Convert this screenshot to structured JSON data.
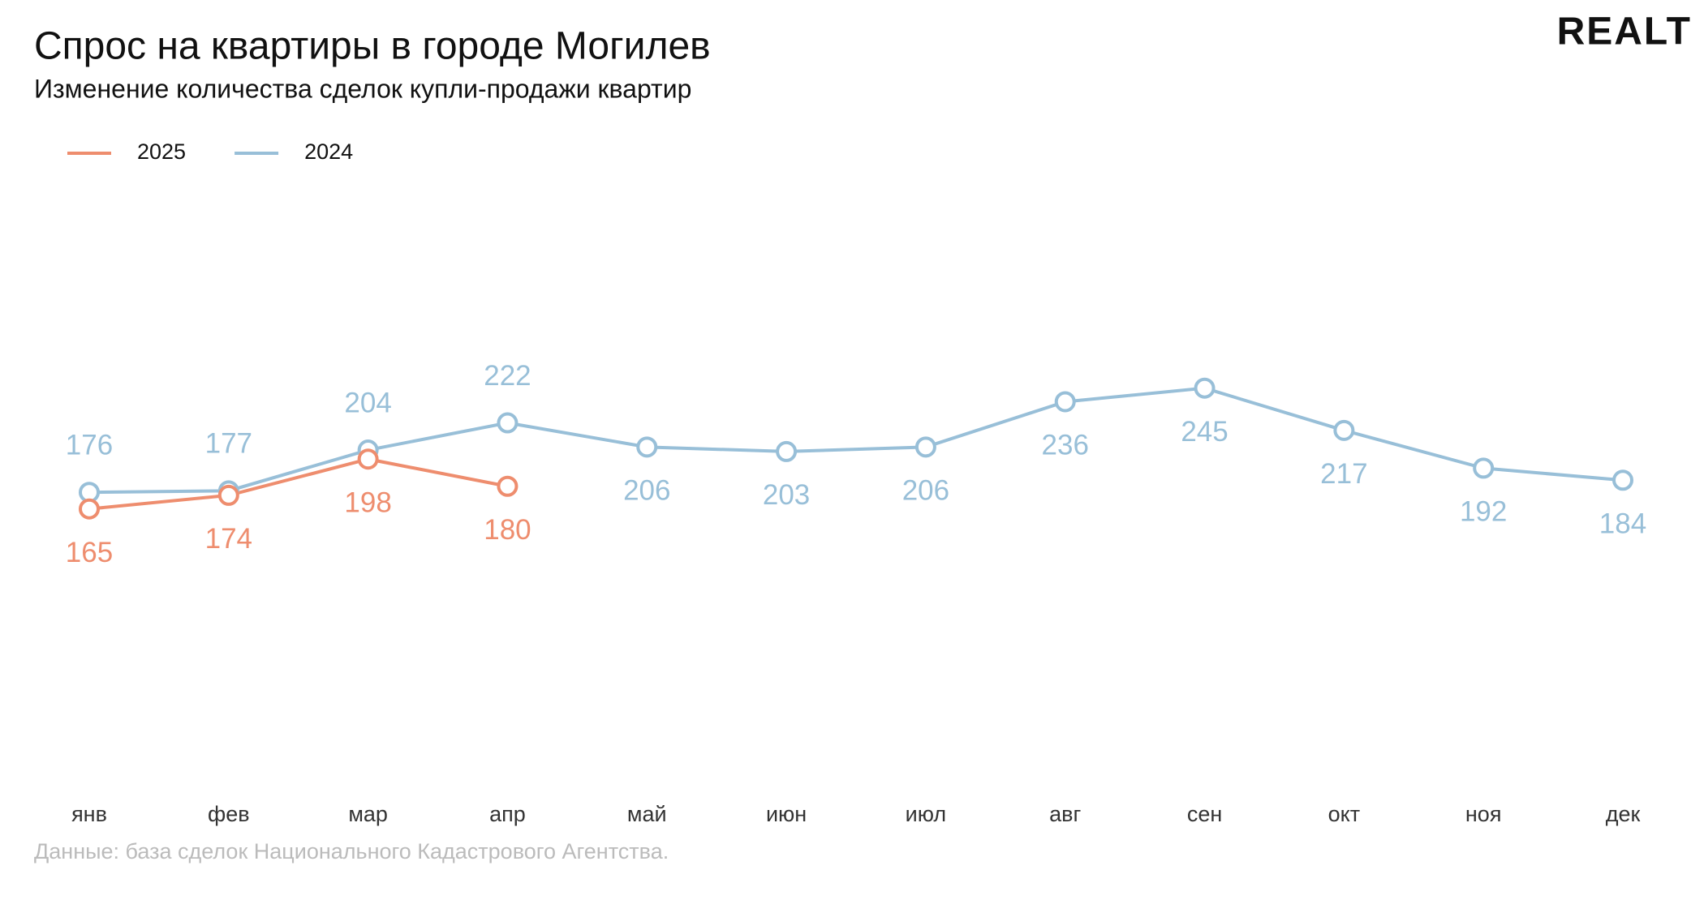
{
  "chart_data": {
    "type": "line",
    "title": "Спрос на квартиры в городе Могилев",
    "subtitle": "Изменение количества сделок купли-продажи квартир",
    "source": "Данные: база сделок Национального Кадастрового Агентства.",
    "logo": "REALT",
    "categories": [
      "янв",
      "фев",
      "мар",
      "апр",
      "май",
      "июн",
      "июл",
      "авг",
      "сен",
      "окт",
      "ноя",
      "дек"
    ],
    "series": [
      {
        "name": "2025",
        "color": "#ee8d6e",
        "values": [
          165,
          174,
          198,
          180,
          null,
          null,
          null,
          null,
          null,
          null,
          null,
          null
        ]
      },
      {
        "name": "2024",
        "color": "#98bfd8",
        "values": [
          176,
          177,
          204,
          222,
          206,
          203,
          206,
          236,
          245,
          217,
          192,
          184
        ]
      }
    ],
    "ylim": [
      0,
      400
    ],
    "grid": false,
    "legend": "top-left"
  }
}
